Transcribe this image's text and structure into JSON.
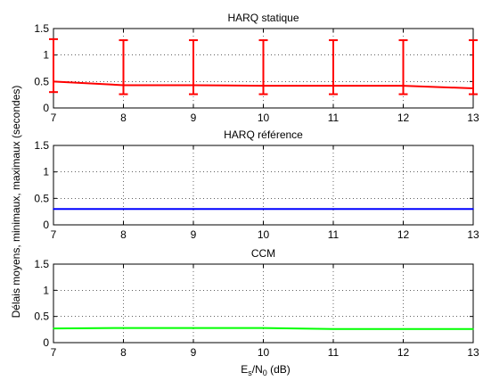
{
  "figure": {
    "ylabel": "Délais moyens, minimaux, maximaux (secondes)",
    "xlabel_main": "E",
    "xlabel_sub1": "s",
    "xlabel_mid": "/N",
    "xlabel_sub2": "0",
    "xlabel_unit": " (dB)"
  },
  "chart_data": [
    {
      "type": "line",
      "title": "HARQ statique",
      "color": "#ff0000",
      "error_bars": true,
      "xlim": [
        7,
        13
      ],
      "ylim": [
        0,
        1.5
      ],
      "grid": true,
      "x": [
        7,
        8,
        9,
        10,
        11,
        12,
        13
      ],
      "x_ticks": [
        "7",
        "8",
        "9",
        "10",
        "11",
        "12",
        "13"
      ],
      "y_ticks": [
        "0",
        "0.5",
        "1",
        "1.5"
      ],
      "y_tick_values": [
        0,
        0.5,
        1,
        1.5
      ],
      "series": [
        {
          "values": [
            0.5,
            0.43,
            0.43,
            0.42,
            0.42,
            0.42,
            0.37
          ],
          "min": [
            0.3,
            0.26,
            0.26,
            0.26,
            0.26,
            0.26,
            0.26
          ],
          "max": [
            1.3,
            1.28,
            1.28,
            1.28,
            1.28,
            1.28,
            1.28
          ]
        }
      ]
    },
    {
      "type": "line",
      "title": "HARQ référence",
      "color": "#0000ff",
      "error_bars": false,
      "xlim": [
        7,
        13
      ],
      "ylim": [
        0,
        1.5
      ],
      "grid": true,
      "x": [
        7,
        8,
        9,
        10,
        11,
        12,
        13
      ],
      "x_ticks": [
        "7",
        "8",
        "9",
        "10",
        "11",
        "12",
        "13"
      ],
      "y_ticks": [
        "0",
        "0.5",
        "1",
        "1.5"
      ],
      "y_tick_values": [
        0,
        0.5,
        1,
        1.5
      ],
      "series": [
        {
          "values": [
            0.3,
            0.3,
            0.3,
            0.3,
            0.3,
            0.3,
            0.3
          ]
        }
      ]
    },
    {
      "type": "line",
      "title": "CCM",
      "color": "#00ff00",
      "error_bars": false,
      "xlim": [
        7,
        13
      ],
      "ylim": [
        0,
        1.5
      ],
      "grid": true,
      "x": [
        7,
        8,
        9,
        10,
        11,
        12,
        13
      ],
      "x_ticks": [
        "7",
        "8",
        "9",
        "10",
        "11",
        "12",
        "13"
      ],
      "y_ticks": [
        "0",
        "0.5",
        "1",
        "1.5"
      ],
      "y_tick_values": [
        0,
        0.5,
        1,
        1.5
      ],
      "series": [
        {
          "values": [
            0.27,
            0.28,
            0.28,
            0.28,
            0.26,
            0.26,
            0.26
          ]
        }
      ]
    }
  ]
}
